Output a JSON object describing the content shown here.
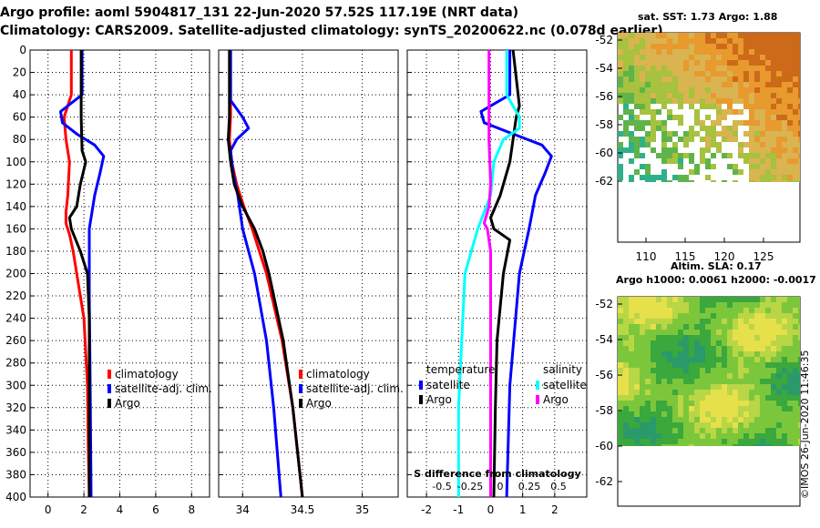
{
  "header": {
    "line1": "Argo profile: aoml 5904817_131 22-Jun-2020 57.52S 117.19E (NRT data)",
    "line2": "Climatology: CARS2009. Satellite-adjusted climatology: synTS_20200622.nc (0.078d earlier)"
  },
  "footer": {
    "credit": "©IMOS 26-Jun-2020 11:46:35"
  },
  "colors": {
    "climatology": "#ff0000",
    "satellite": "#0000ff",
    "argo": "#000000",
    "sat_diff": "#00ffff",
    "argo_diff": "#ff00ff"
  },
  "chart_data": [
    {
      "type": "line",
      "id": "temperature-profile",
      "ylabel": "",
      "ylim": [
        400,
        0
      ],
      "xlim": [
        -1,
        9
      ],
      "xticks": [
        0,
        2,
        4,
        6,
        8
      ],
      "yticks": [
        0,
        20,
        40,
        60,
        80,
        100,
        120,
        140,
        160,
        180,
        200,
        220,
        240,
        260,
        280,
        300,
        320,
        340,
        360,
        380,
        400
      ],
      "grid": true,
      "legend": [
        "climatology",
        "satellite-adj. clim.",
        "Argo"
      ],
      "series": [
        {
          "name": "climatology",
          "color": "#ff0000",
          "depth": [
            0,
            40,
            60,
            80,
            100,
            130,
            145,
            155,
            165,
            180,
            200,
            240,
            300,
            360,
            400
          ],
          "values": [
            1.3,
            1.3,
            0.9,
            1.0,
            1.2,
            1.1,
            1.0,
            1.0,
            1.2,
            1.4,
            1.6,
            2.0,
            2.2,
            2.25,
            2.3
          ]
        },
        {
          "name": "satellite-adj. clim.",
          "color": "#0000ff",
          "depth": [
            0,
            40,
            55,
            65,
            75,
            85,
            95,
            110,
            130,
            160,
            180,
            220,
            300,
            400
          ],
          "values": [
            1.9,
            1.9,
            0.7,
            0.8,
            1.6,
            2.6,
            3.1,
            2.9,
            2.6,
            2.3,
            2.3,
            2.3,
            2.35,
            2.4
          ]
        },
        {
          "name": "Argo",
          "color": "#000000",
          "depth": [
            0,
            60,
            90,
            100,
            120,
            140,
            150,
            160,
            180,
            200,
            240,
            300,
            400
          ],
          "values": [
            1.85,
            1.85,
            1.9,
            2.1,
            1.8,
            1.6,
            1.2,
            1.3,
            1.8,
            2.2,
            2.3,
            2.3,
            2.3
          ]
        }
      ]
    },
    {
      "type": "line",
      "id": "salinity-profile",
      "ylim": [
        400,
        0
      ],
      "xlim": [
        33.8,
        35.3
      ],
      "xticks": [
        34,
        34.5,
        35
      ],
      "grid": true,
      "legend": [
        "climatology",
        "satellite-adj. clim.",
        "Argo"
      ],
      "series": [
        {
          "name": "climatology",
          "color": "#ff0000",
          "depth": [
            0,
            60,
            80,
            100,
            120,
            140,
            160,
            200,
            260,
            320,
            400
          ],
          "values": [
            33.9,
            33.9,
            33.89,
            33.91,
            33.95,
            34.01,
            34.08,
            34.2,
            34.33,
            34.42,
            34.5
          ]
        },
        {
          "name": "satellite-adj. clim.",
          "color": "#0000ff",
          "depth": [
            0,
            45,
            60,
            70,
            80,
            90,
            110,
            130,
            160,
            200,
            260,
            320,
            400
          ],
          "values": [
            33.9,
            33.9,
            34.0,
            34.05,
            33.95,
            33.9,
            33.92,
            33.96,
            34.0,
            34.1,
            34.2,
            34.26,
            34.32
          ]
        },
        {
          "name": "Argo",
          "color": "#000000",
          "depth": [
            0,
            60,
            80,
            100,
            120,
            140,
            160,
            180,
            200,
            260,
            320,
            400
          ],
          "values": [
            33.89,
            33.89,
            33.88,
            33.9,
            33.93,
            34.0,
            34.1,
            34.17,
            34.22,
            34.34,
            34.42,
            34.5
          ]
        }
      ]
    },
    {
      "type": "line",
      "id": "difference-profile",
      "xlabel": "S difference from climatology",
      "ylim": [
        400,
        0
      ],
      "xlim": [
        -2.6,
        3.0
      ],
      "xticks": [
        -2,
        -1,
        0,
        1,
        2
      ],
      "x2ticks": [
        -0.5,
        -0.25,
        0,
        0.25,
        0.5
      ],
      "grid": true,
      "legend_groups": [
        {
          "title": "temperature",
          "entries": [
            "satellite",
            "Argo"
          ]
        },
        {
          "title": "salinity",
          "entries": [
            "satellite",
            "Argo"
          ]
        }
      ],
      "series": [
        {
          "name": "temperature satellite",
          "color": "#0000ff",
          "depth": [
            0,
            40,
            55,
            65,
            75,
            85,
            95,
            110,
            130,
            160,
            200,
            300,
            400
          ],
          "values": [
            0.6,
            0.6,
            -0.3,
            -0.2,
            0.7,
            1.6,
            1.9,
            1.7,
            1.4,
            1.2,
            0.9,
            0.6,
            0.5
          ]
        },
        {
          "name": "temperature Argo",
          "color": "#000000",
          "depth": [
            0,
            50,
            60,
            80,
            100,
            130,
            150,
            160,
            170,
            200,
            260,
            320,
            400
          ],
          "values": [
            0.7,
            0.9,
            0.8,
            0.7,
            0.6,
            0.3,
            0.0,
            0.1,
            0.6,
            0.4,
            0.2,
            0.15,
            0.1
          ]
        },
        {
          "name": "salinity satellite",
          "color": "#00ffff",
          "depth": [
            0,
            40,
            60,
            70,
            80,
            100,
            130,
            160,
            200,
            260,
            320,
            400
          ],
          "values": [
            0.5,
            0.5,
            0.9,
            0.9,
            0.4,
            0.1,
            0.0,
            -0.4,
            -0.8,
            -0.9,
            -1.0,
            -1.0
          ]
        },
        {
          "name": "salinity Argo",
          "color": "#ff00ff",
          "depth": [
            0,
            80,
            120,
            140,
            155,
            160,
            180,
            200,
            260,
            320,
            400
          ],
          "values": [
            -0.05,
            -0.05,
            0.0,
            -0.05,
            -0.2,
            -0.1,
            0.0,
            0.0,
            0.0,
            0.0,
            0.0
          ]
        }
      ]
    },
    {
      "type": "heatmap",
      "id": "sst-map",
      "title": "sat. SST: 1.73 Argo: 1.88",
      "xticks": [
        110,
        115,
        120,
        125
      ],
      "yticks": [
        -52,
        -54,
        -56,
        -58,
        -60,
        -62
      ]
    },
    {
      "type": "heatmap",
      "id": "sla-map",
      "title": "Altim. SLA: 0.17",
      "subtitle": "Argo h1000: 0.0061 h2000: -0.0017",
      "yticks": [
        -52,
        -54,
        -56,
        -58,
        -60,
        -62
      ]
    }
  ]
}
